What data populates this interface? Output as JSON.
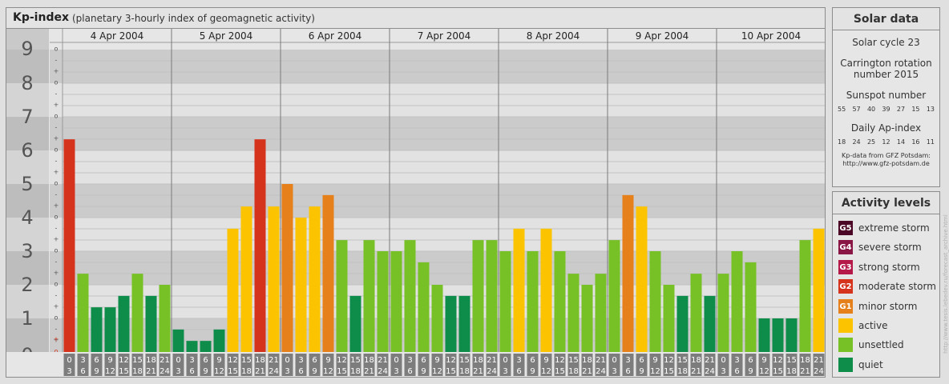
{
  "chart_data": {
    "type": "bar",
    "title": "Kp-index",
    "subtitle": "(planetary 3-hourly index of geomagnetic activity)",
    "ylim": [
      0,
      9
    ],
    "yticks": [
      "0",
      "1",
      "2",
      "3",
      "4",
      "5",
      "6",
      "7",
      "8",
      "9"
    ],
    "minor_tick_glyphs": [
      "o",
      "+",
      "-"
    ],
    "grid": true,
    "days": [
      "4 Apr 2004",
      "5 Apr 2004",
      "6 Apr 2004",
      "7 Apr 2004",
      "8 Apr 2004",
      "9 Apr 2004",
      "10 Apr 2004"
    ],
    "interval_labels": [
      [
        "0",
        "3"
      ],
      [
        "3",
        "6"
      ],
      [
        "6",
        "9"
      ],
      [
        "9",
        "12"
      ],
      [
        "12",
        "15"
      ],
      [
        "15",
        "18"
      ],
      [
        "18",
        "21"
      ],
      [
        "21",
        "24"
      ]
    ],
    "values": [
      [
        6.33,
        2.33,
        1.33,
        1.33,
        1.67,
        2.33,
        1.67,
        2.0
      ],
      [
        0.67,
        0.33,
        0.33,
        0.67,
        3.67,
        4.33,
        6.33,
        4.33
      ],
      [
        5.0,
        4.0,
        4.33,
        4.67,
        3.33,
        1.67,
        3.33,
        3.0
      ],
      [
        3.0,
        3.33,
        2.67,
        2.0,
        1.67,
        1.67,
        3.33,
        3.33
      ],
      [
        3.0,
        3.67,
        3.0,
        3.67,
        3.0,
        2.33,
        2.0,
        2.33
      ],
      [
        3.33,
        4.67,
        4.33,
        3.0,
        2.0,
        1.67,
        2.33,
        1.67
      ],
      [
        2.33,
        3.0,
        2.67,
        1.0,
        1.0,
        1.0,
        3.33,
        3.67
      ]
    ],
    "colors": {
      "quiet": "#0e8c4a",
      "unsettled": "#77c025",
      "active": "#fcc400",
      "minor_storm": "#e5801a",
      "moderate_storm": "#d6331c",
      "strong_storm": "#b5194a",
      "severe_storm": "#8a1646",
      "extreme_storm": "#4d0726"
    }
  },
  "solar": {
    "title": "Solar data",
    "cycle": "Solar cycle 23",
    "carrington_line1": "Carrington rotation",
    "carrington_line2": "number 2015",
    "sunspot_title": "Sunspot number",
    "sunspot_values": [
      "55",
      "57",
      "40",
      "39",
      "27",
      "15",
      "13"
    ],
    "ap_title": "Daily Ap-index",
    "ap_values": [
      "18",
      "24",
      "25",
      "12",
      "14",
      "16",
      "11"
    ],
    "source_line1": "Kp-data from GFZ Potsdam:",
    "source_line2": "http://www.gfz-potsdam.de"
  },
  "activity": {
    "title": "Activity levels",
    "levels": [
      {
        "code": "G5",
        "label": "extreme storm",
        "color": "#4d0726"
      },
      {
        "code": "G4",
        "label": "severe storm",
        "color": "#8a1646"
      },
      {
        "code": "G3",
        "label": "strong storm",
        "color": "#b5194a"
      },
      {
        "code": "G2",
        "label": "moderate storm",
        "color": "#d6331c"
      },
      {
        "code": "G1",
        "label": "minor storm",
        "color": "#e5801a"
      },
      {
        "code": "",
        "label": "active",
        "color": "#fcc400"
      },
      {
        "code": "",
        "label": "unsettled",
        "color": "#77c025"
      },
      {
        "code": "",
        "label": "quiet",
        "color": "#0e8c4a"
      }
    ]
  },
  "watermark": "http://www.tesis.lebedev.ru/forecast_archive.html"
}
